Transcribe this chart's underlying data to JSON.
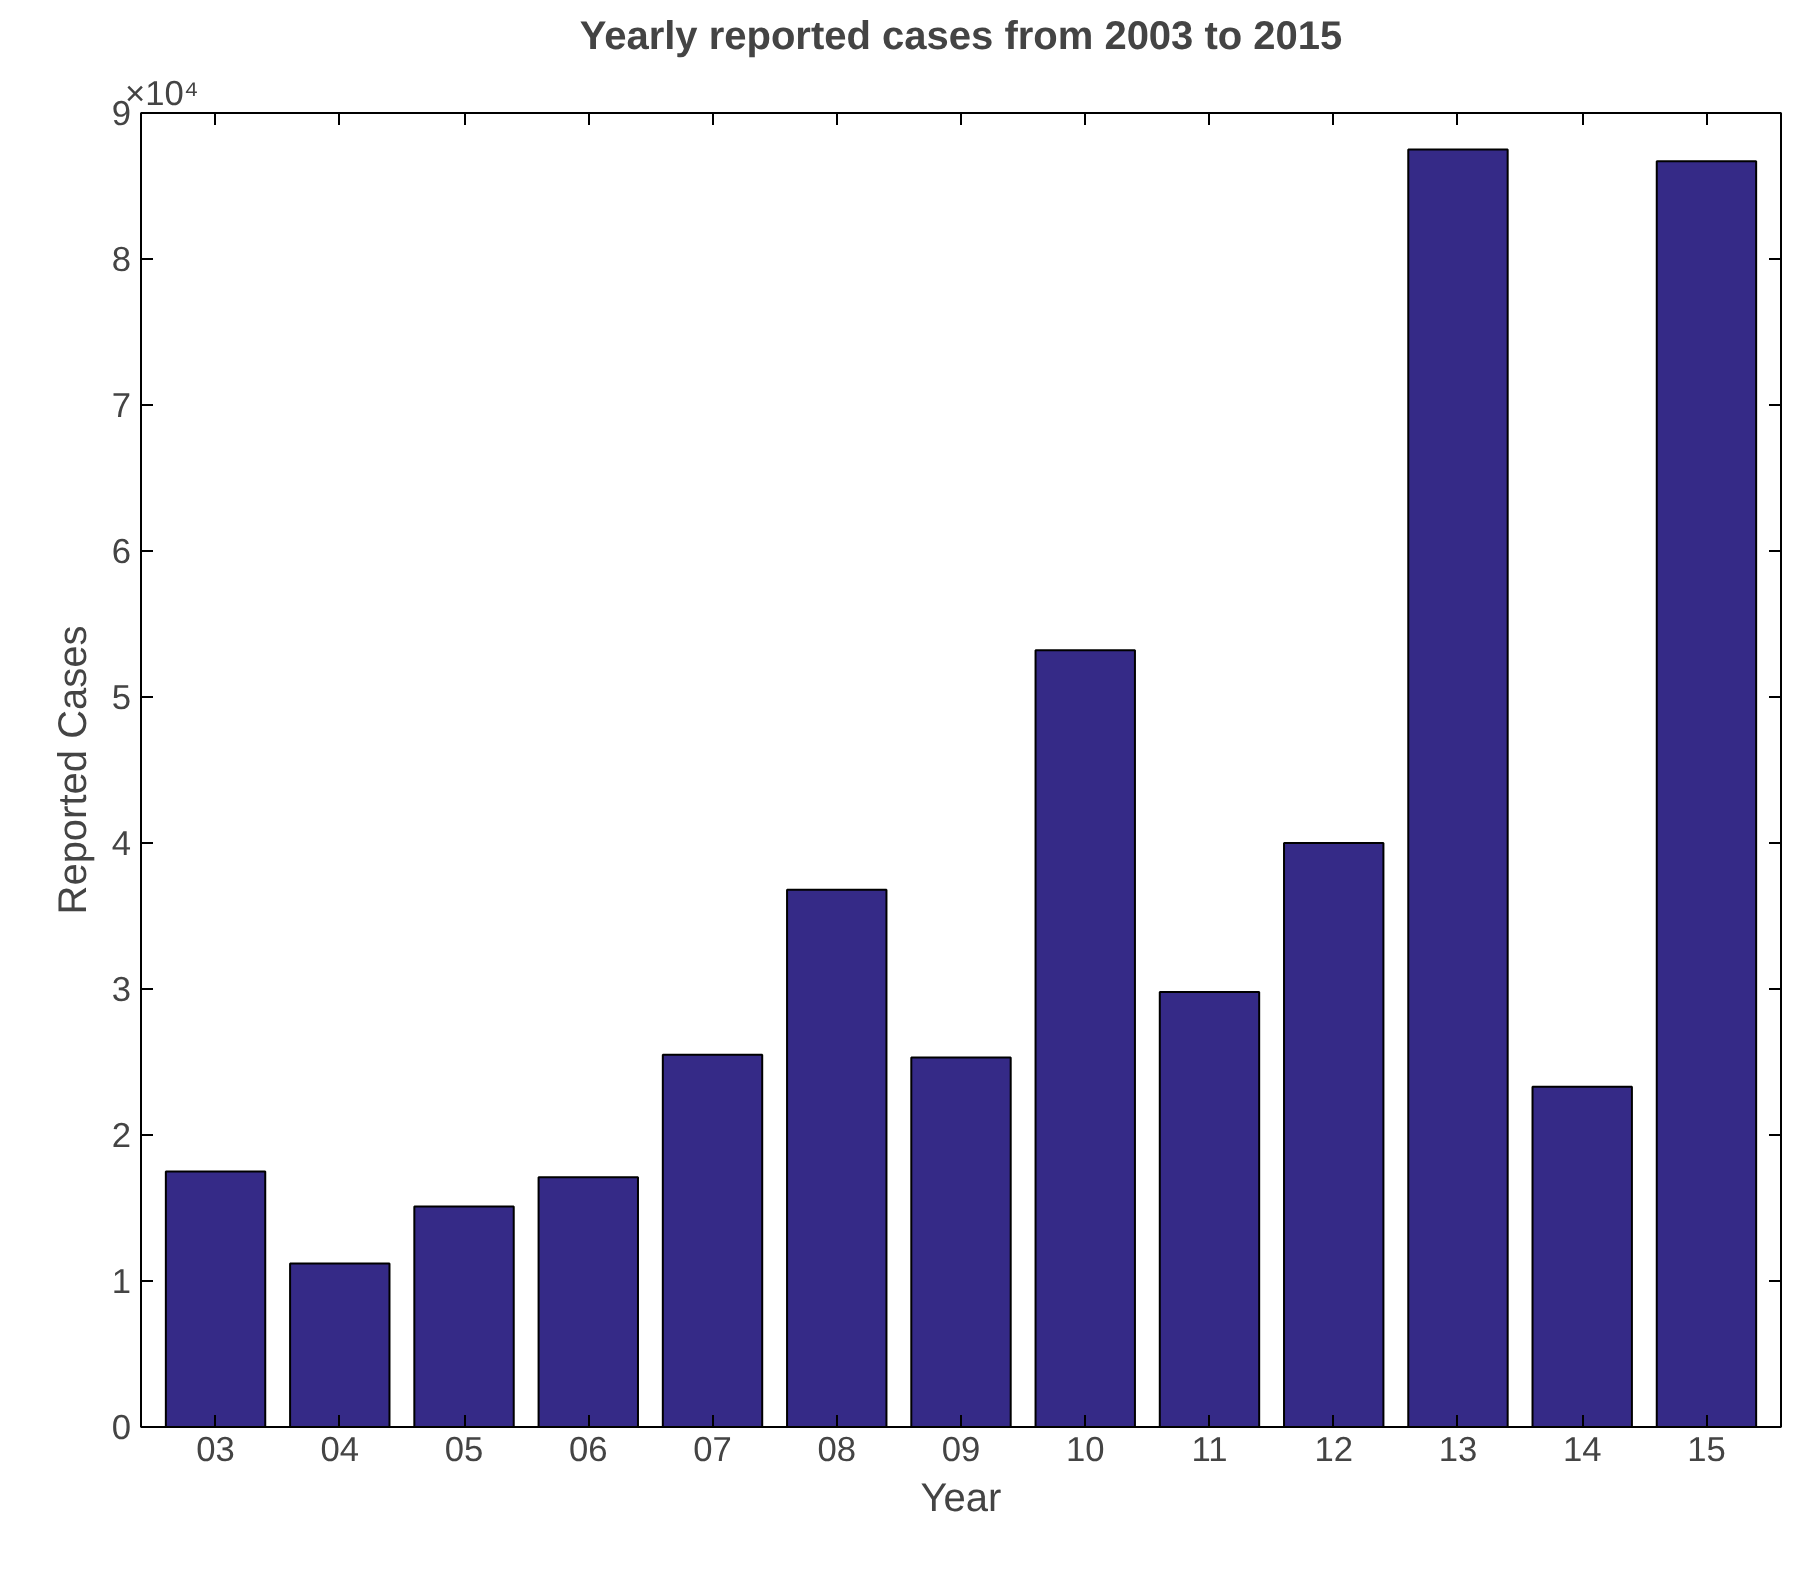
{
  "chart_data": {
    "type": "bar",
    "title": "Yearly reported cases from 2003 to 2015",
    "xlabel": "Year",
    "ylabel": "Reported Cases",
    "categories": [
      "03",
      "04",
      "05",
      "06",
      "07",
      "08",
      "09",
      "10",
      "11",
      "12",
      "13",
      "14",
      "15"
    ],
    "values": [
      1.75,
      1.12,
      1.51,
      1.71,
      2.55,
      3.68,
      2.53,
      5.32,
      2.98,
      4.0,
      8.75,
      2.33,
      8.67
    ],
    "color": "#352a87",
    "ylim": [
      0,
      9
    ],
    "yticks": [
      0,
      1,
      2,
      3,
      4,
      5,
      6,
      7,
      8,
      9
    ],
    "annotations": [
      "×10⁴"
    ],
    "grid": false
  }
}
